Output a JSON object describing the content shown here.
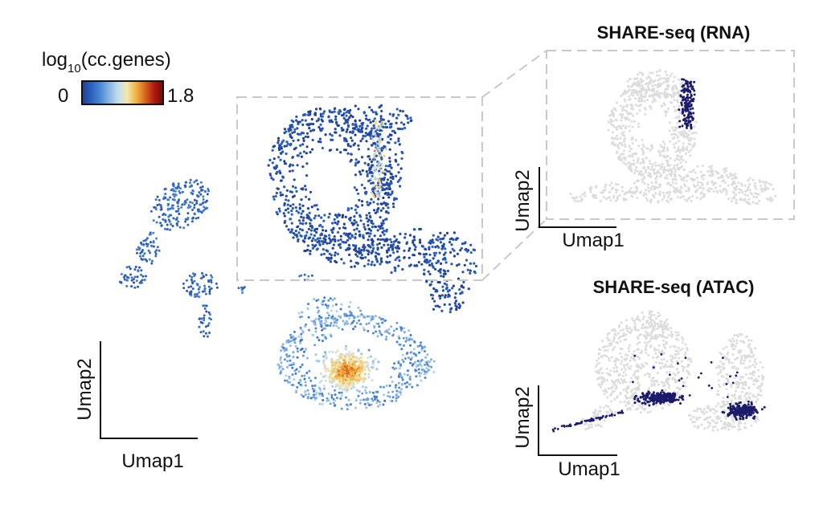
{
  "chart_data": [
    {
      "type": "scatter",
      "xlabel": "Umap1",
      "ylabel": "Umap2",
      "grid": false,
      "colorbar": {
        "label_main": "log",
        "label_sub": "10",
        "label_rest": "(cc.genes)",
        "min_label": "0",
        "max_label": "1.8",
        "range": [
          0,
          1.8
        ],
        "colors": [
          "#1f3e93",
          "#2c5fbd",
          "#4a86d4",
          "#86b4e2",
          "#c4dcee",
          "#f3e6b0",
          "#f0b442",
          "#d8641f",
          "#b01a10",
          "#6e0b06"
        ]
      },
      "clusters": [
        {
          "name": "",
          "level": 0.1
        },
        {
          "name": "",
          "level": 0.25
        },
        {
          "name": "",
          "level": 1.4
        }
      ]
    },
    {
      "type": "scatter",
      "title": "SHARE-seq (RNA)",
      "xlabel": "Umap1",
      "ylabel": "Umap2",
      "grid": false,
      "highlight_color": "#1c1a6b",
      "background_color": "#dcdcdc"
    },
    {
      "type": "scatter",
      "title": "SHARE-seq (ATAC)",
      "xlabel": "Umap1",
      "ylabel": "Umap2",
      "grid": false,
      "highlight_color": "#1c1a6b",
      "background_color": "#dcdcdc"
    }
  ]
}
